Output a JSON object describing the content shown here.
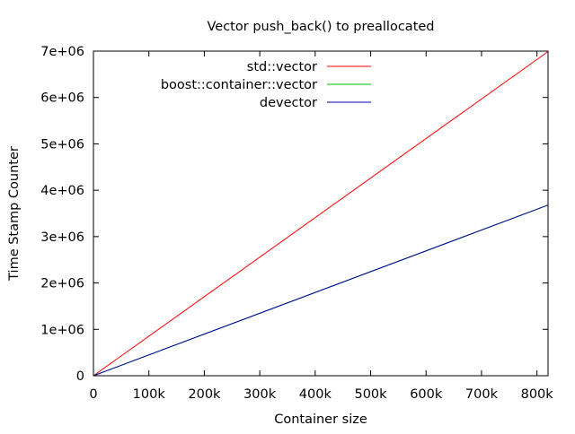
{
  "chart_data": {
    "type": "line",
    "title": "Vector push_back() to preallocated",
    "xlabel": "Container size",
    "ylabel": "Time Stamp Counter",
    "xlim": [
      0,
      820000
    ],
    "ylim": [
      0,
      7000000
    ],
    "x_ticks": [
      {
        "value": 0,
        "label": "0"
      },
      {
        "value": 100000,
        "label": "100k"
      },
      {
        "value": 200000,
        "label": "200k"
      },
      {
        "value": 300000,
        "label": "300k"
      },
      {
        "value": 400000,
        "label": "400k"
      },
      {
        "value": 500000,
        "label": "500k"
      },
      {
        "value": 600000,
        "label": "600k"
      },
      {
        "value": 700000,
        "label": "700k"
      },
      {
        "value": 800000,
        "label": "800k"
      }
    ],
    "y_ticks": [
      {
        "value": 0,
        "label": "0"
      },
      {
        "value": 1000000,
        "label": "1e+06"
      },
      {
        "value": 2000000,
        "label": "2e+06"
      },
      {
        "value": 3000000,
        "label": "3e+06"
      },
      {
        "value": 4000000,
        "label": "4e+06"
      },
      {
        "value": 5000000,
        "label": "5e+06"
      },
      {
        "value": 6000000,
        "label": "6e+06"
      },
      {
        "value": 7000000,
        "label": "7e+06"
      }
    ],
    "grid": false,
    "legend_position": "top-left",
    "series": [
      {
        "name": "std::vector",
        "color": "#ff0000",
        "x": [
          0,
          820000
        ],
        "y": [
          0,
          6990000
        ]
      },
      {
        "name": "boost::container::vector",
        "color": "#00c000",
        "x": [
          0,
          820000
        ],
        "y": [
          0,
          3680000
        ]
      },
      {
        "name": "devector",
        "color": "#0000a0",
        "x": [
          0,
          820000
        ],
        "y": [
          0,
          3680000
        ]
      }
    ]
  }
}
